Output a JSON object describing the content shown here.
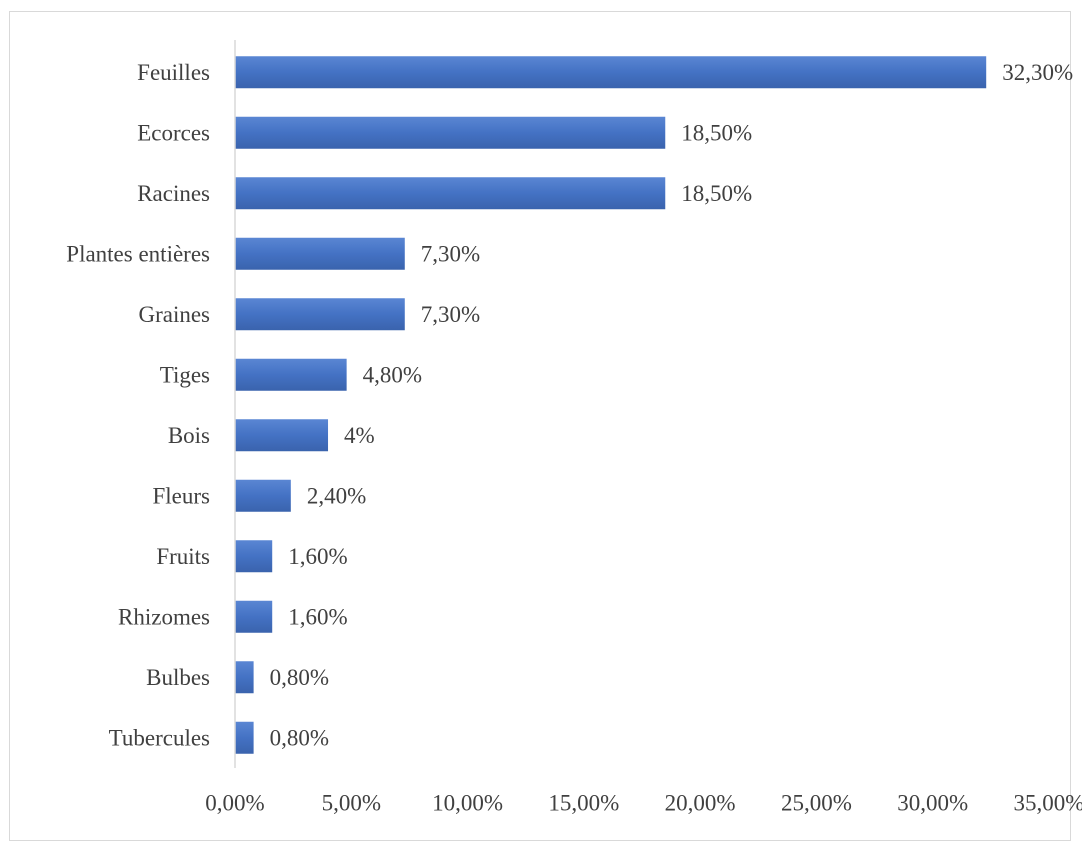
{
  "chart_data": {
    "type": "bar",
    "orientation": "horizontal",
    "categories": [
      "Feuilles",
      "Ecorces",
      "Racines",
      "Plantes entières",
      "Graines",
      "Tiges",
      "Bois",
      "Fleurs",
      "Fruits",
      "Rhizomes",
      "Bulbes",
      "Tubercules"
    ],
    "values": [
      32.3,
      18.5,
      18.5,
      7.3,
      7.3,
      4.8,
      4.0,
      2.4,
      1.6,
      1.6,
      0.8,
      0.8
    ],
    "value_labels": [
      "32,30%",
      "18,50%",
      "18,50%",
      "7,30%",
      "7,30%",
      "4,80%",
      "4%",
      "2,40%",
      "1,60%",
      "1,60%",
      "0,80%",
      "0,80%"
    ],
    "x_ticks": [
      "0,00%",
      "5,00%",
      "10,00%",
      "15,00%",
      "20,00%",
      "25,00%",
      "30,00%",
      "35,00%"
    ],
    "xlim": [
      0,
      35
    ],
    "title": "",
    "xlabel": "",
    "ylabel": "",
    "grid": false,
    "legend": "none",
    "bar_color": "#4472c4"
  }
}
